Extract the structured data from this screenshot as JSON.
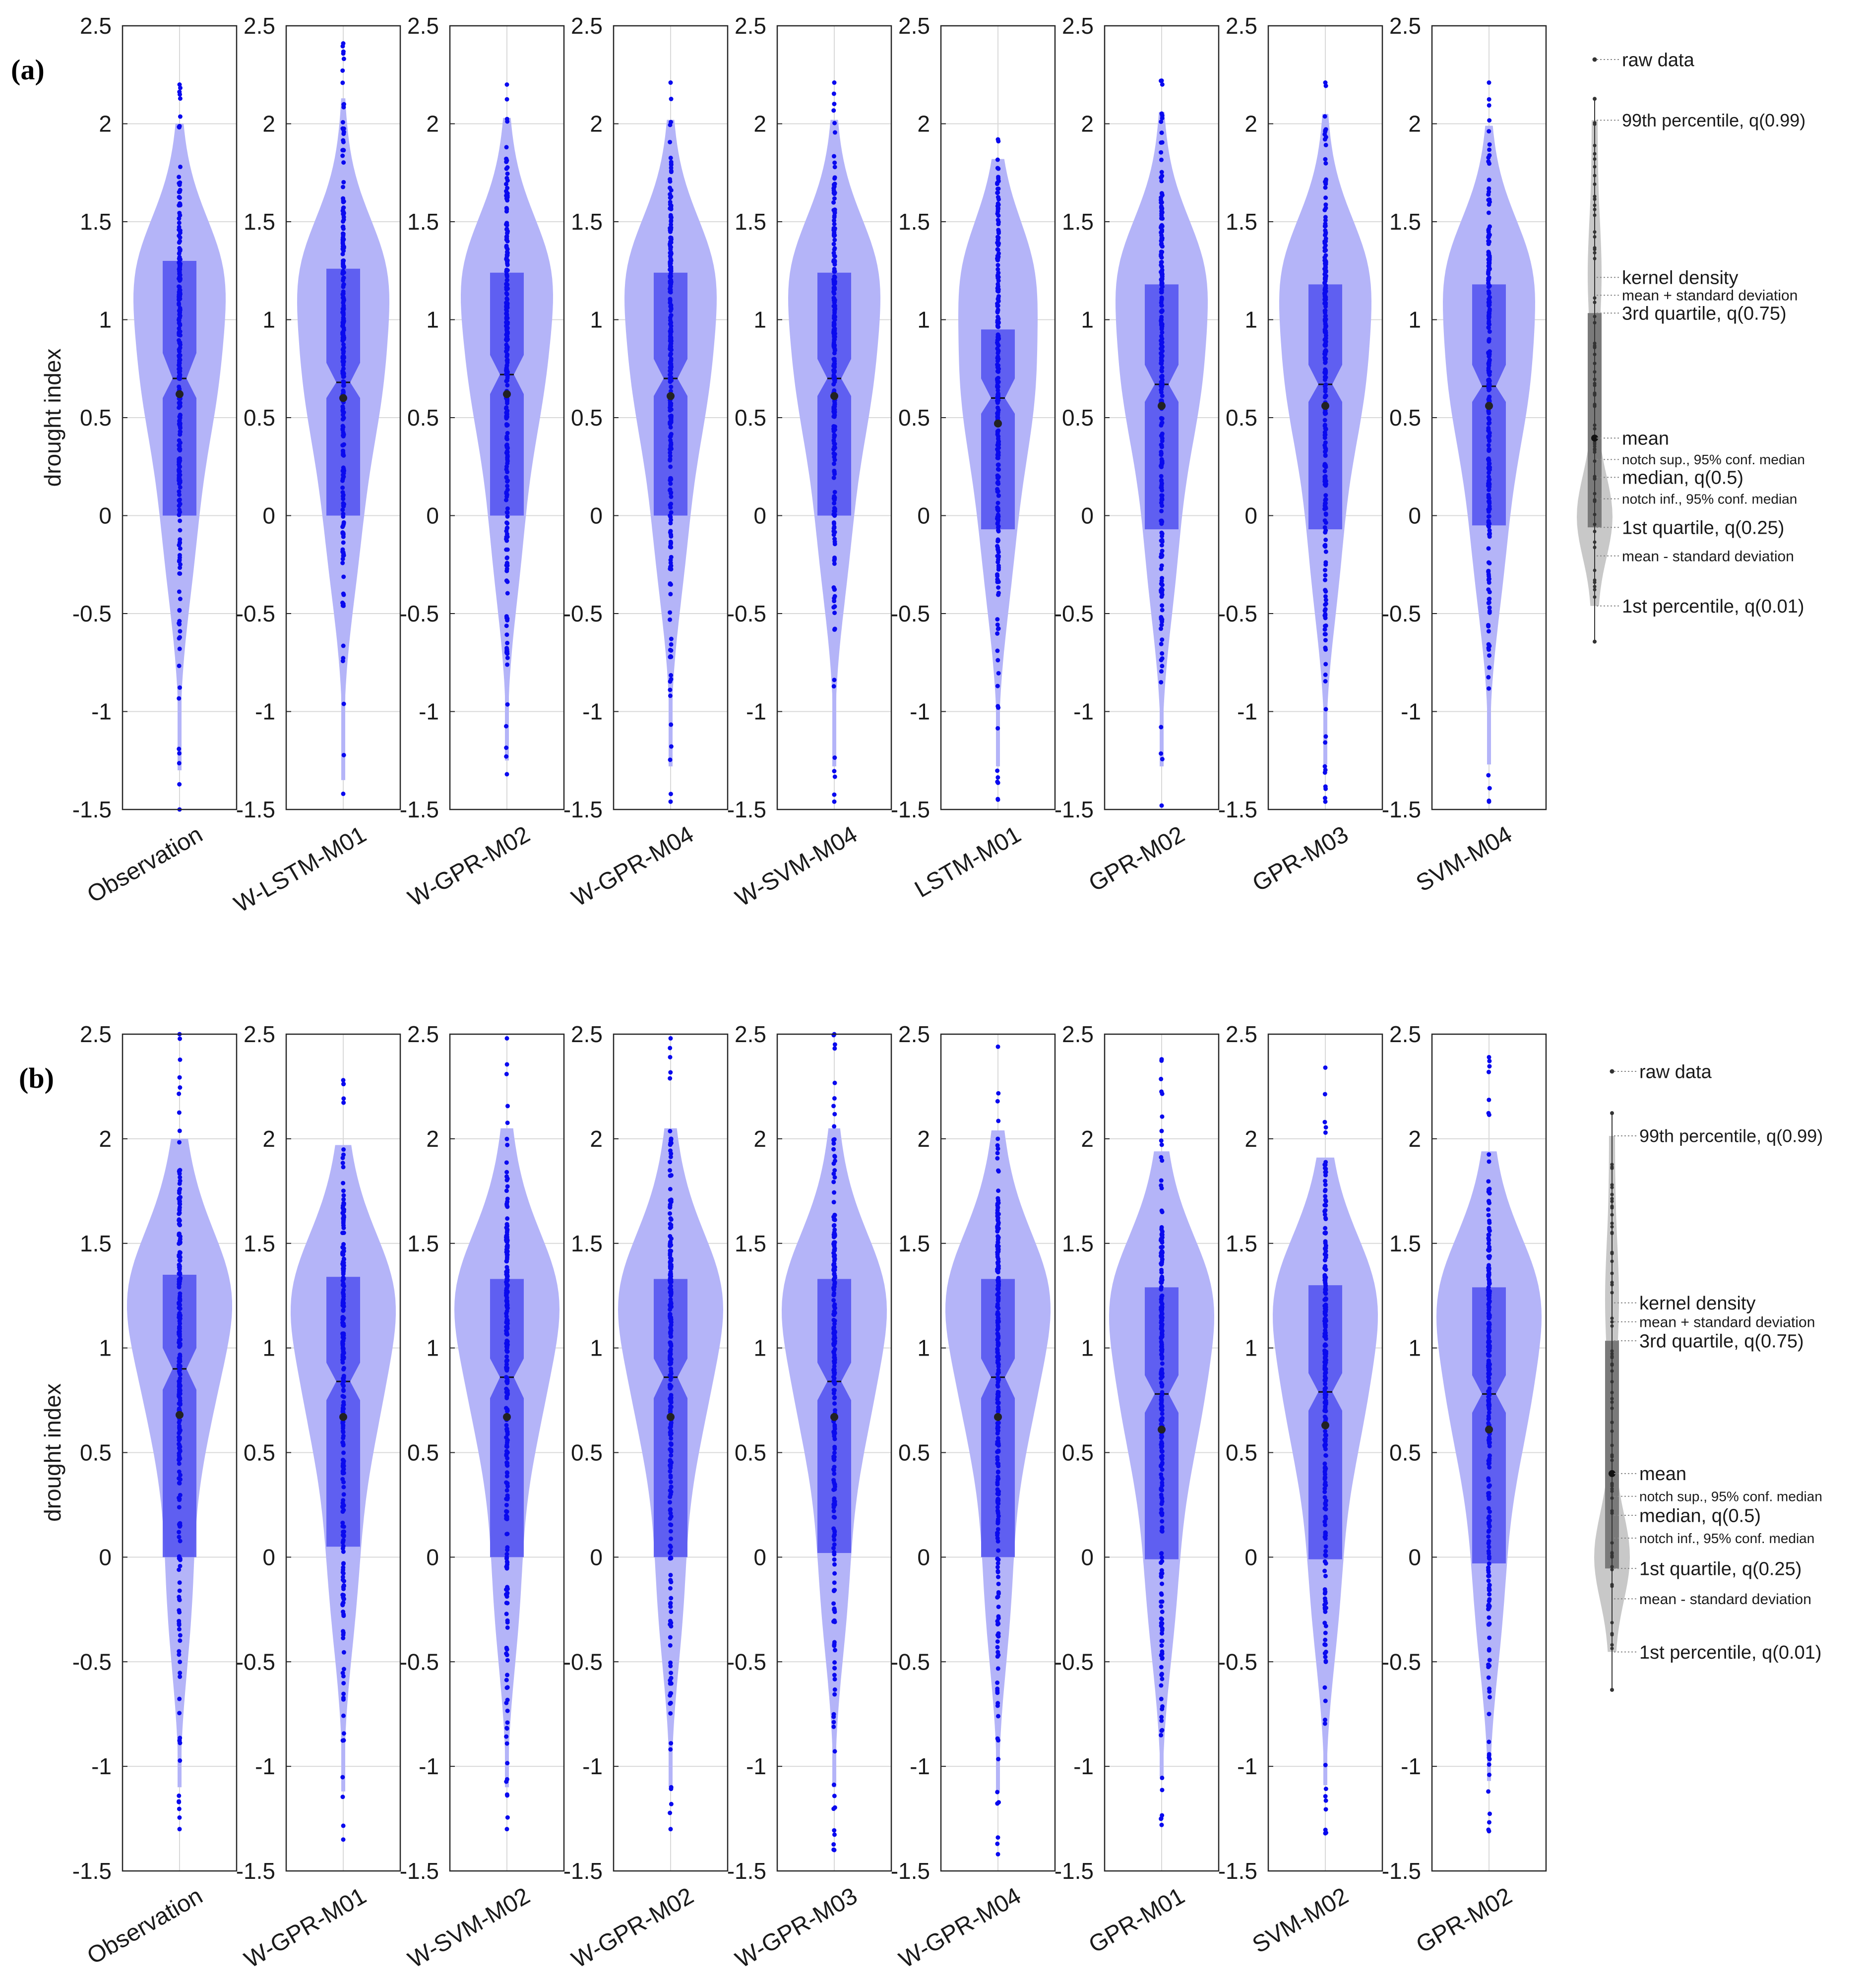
{
  "colors": {
    "violin": "#b4b4f8",
    "box": "#5555f0",
    "notch": "#3a3aee",
    "points": "#0a0aee",
    "mean": "#222222",
    "legend_violin": "#c8c8c8",
    "legend_box": "#7a7a7a",
    "grid": "#d9d9d9"
  },
  "chart_data": [
    {
      "type": "violin",
      "panel_label": "(a)",
      "ylabel": "drought index",
      "ylim": [
        -1.5,
        2.5
      ],
      "yticks": [
        "-1.5",
        "-1",
        "-0.5",
        "0",
        "0.5",
        "1",
        "1.5",
        "2",
        "2.5"
      ],
      "grid": true,
      "series": [
        {
          "name": "Observation",
          "min": -1.5,
          "max": 2.2,
          "q1": 0.0,
          "median": 0.7,
          "q3": 1.3,
          "mean": 0.62,
          "notch_low": 0.6,
          "notch_high": 0.83,
          "q01": -1.3,
          "q99": 2.0,
          "density_peak": 1.0
        },
        {
          "name": "W-LSTM-M01",
          "min": -1.42,
          "max": 2.41,
          "q1": 0.0,
          "median": 0.68,
          "q3": 1.26,
          "mean": 0.6,
          "notch_low": 0.6,
          "notch_high": 0.78,
          "q01": -1.35,
          "q99": 2.13,
          "density_peak": 1.0
        },
        {
          "name": "W-GPR-M02",
          "min": -1.32,
          "max": 2.2,
          "q1": 0.0,
          "median": 0.72,
          "q3": 1.24,
          "mean": 0.62,
          "notch_low": 0.62,
          "notch_high": 0.82,
          "q01": -1.25,
          "q99": 2.03,
          "density_peak": 1.0
        },
        {
          "name": "W-GPR-M04",
          "min": -1.46,
          "max": 2.21,
          "q1": 0.0,
          "median": 0.7,
          "q3": 1.24,
          "mean": 0.61,
          "notch_low": 0.61,
          "notch_high": 0.8,
          "q01": -1.28,
          "q99": 2.02,
          "density_peak": 1.0
        },
        {
          "name": "W-SVM-M04",
          "min": -1.46,
          "max": 2.21,
          "q1": 0.0,
          "median": 0.7,
          "q3": 1.24,
          "mean": 0.61,
          "notch_low": 0.61,
          "notch_high": 0.8,
          "q01": -1.28,
          "q99": 2.02,
          "density_peak": 1.0
        },
        {
          "name": "LSTM-M01",
          "min": -1.45,
          "max": 1.92,
          "q1": -0.07,
          "median": 0.6,
          "q3": 0.95,
          "mean": 0.47,
          "notch_low": 0.52,
          "notch_high": 0.7,
          "q01": -1.28,
          "q99": 1.82,
          "density_peak": 0.8
        },
        {
          "name": "GPR-M02",
          "min": -1.48,
          "max": 2.22,
          "q1": -0.07,
          "median": 0.67,
          "q3": 1.18,
          "mean": 0.56,
          "notch_low": 0.58,
          "notch_high": 0.77,
          "q01": -1.28,
          "q99": 2.06,
          "density_peak": 1.0
        },
        {
          "name": "GPR-M03",
          "min": -1.46,
          "max": 2.21,
          "q1": -0.07,
          "median": 0.67,
          "q3": 1.18,
          "mean": 0.56,
          "notch_low": 0.58,
          "notch_high": 0.77,
          "q01": -1.27,
          "q99": 2.05,
          "density_peak": 1.0
        },
        {
          "name": "SVM-M04",
          "min": -1.46,
          "max": 2.21,
          "q1": -0.05,
          "median": 0.66,
          "q3": 1.18,
          "mean": 0.56,
          "notch_low": 0.58,
          "notch_high": 0.77,
          "q01": -1.27,
          "q99": 1.99,
          "density_peak": 1.0
        }
      ],
      "legend": {
        "items": [
          "raw data",
          "99th percentile, q(0.99)",
          "kernel density",
          "mean + standard deviation",
          "3rd quartile, q(0.75)",
          "mean",
          "notch sup., 95% conf. median",
          "median, q(0.5)",
          "notch inf., 95% conf. median",
          "1st quartile, q(0.25)",
          "mean - standard deviation",
          "1st percentile, q(0.01)"
        ]
      }
    },
    {
      "type": "violin",
      "panel_label": "(b)",
      "ylabel": "drought index",
      "ylim": [
        -1.5,
        2.5
      ],
      "yticks": [
        "-1.5",
        "-1",
        "-0.5",
        "0",
        "0.5",
        "1",
        "1.5",
        "2",
        "2.5"
      ],
      "grid": true,
      "series": [
        {
          "name": "Observation",
          "min": -1.3,
          "max": 2.5,
          "q1": 0.0,
          "median": 0.9,
          "q3": 1.35,
          "mean": 0.68,
          "notch_low": 0.8,
          "notch_high": 1.0,
          "q01": -1.1,
          "q99": 2.0,
          "density_peak": 1.2
        },
        {
          "name": "W-GPR-M01",
          "min": -1.35,
          "max": 2.28,
          "q1": 0.05,
          "median": 0.84,
          "q3": 1.34,
          "mean": 0.67,
          "notch_low": 0.75,
          "notch_high": 0.93,
          "q01": -1.12,
          "q99": 1.97,
          "density_peak": 1.2
        },
        {
          "name": "W-SVM-M02",
          "min": -1.3,
          "max": 2.48,
          "q1": 0.0,
          "median": 0.86,
          "q3": 1.33,
          "mean": 0.67,
          "notch_low": 0.76,
          "notch_high": 0.95,
          "q01": -1.1,
          "q99": 2.05,
          "density_peak": 1.2
        },
        {
          "name": "W-GPR-M02",
          "min": -1.3,
          "max": 2.48,
          "q1": 0.0,
          "median": 0.86,
          "q3": 1.33,
          "mean": 0.67,
          "notch_low": 0.76,
          "notch_high": 0.95,
          "q01": -1.1,
          "q99": 2.05,
          "density_peak": 1.2
        },
        {
          "name": "W-GPR-M03",
          "min": -1.4,
          "max": 2.5,
          "q1": 0.02,
          "median": 0.84,
          "q3": 1.33,
          "mean": 0.67,
          "notch_low": 0.75,
          "notch_high": 0.93,
          "q01": -1.1,
          "q99": 2.05,
          "density_peak": 1.2
        },
        {
          "name": "W-GPR-M04",
          "min": -1.42,
          "max": 2.44,
          "q1": 0.0,
          "median": 0.86,
          "q3": 1.33,
          "mean": 0.67,
          "notch_low": 0.76,
          "notch_high": 0.95,
          "q01": -1.12,
          "q99": 2.04,
          "density_peak": 1.2
        },
        {
          "name": "GPR-M01",
          "min": -1.28,
          "max": 2.38,
          "q1": -0.01,
          "median": 0.78,
          "q3": 1.29,
          "mean": 0.61,
          "notch_low": 0.69,
          "notch_high": 0.87,
          "q01": -1.05,
          "q99": 1.94,
          "density_peak": 1.2
        },
        {
          "name": "SVM-M02",
          "min": -1.32,
          "max": 2.34,
          "q1": -0.01,
          "median": 0.79,
          "q3": 1.3,
          "mean": 0.63,
          "notch_low": 0.7,
          "notch_high": 0.88,
          "q01": -1.09,
          "q99": 1.91,
          "density_peak": 1.2
        },
        {
          "name": "GPR-M02",
          "min": -1.31,
          "max": 2.39,
          "q1": -0.03,
          "median": 0.78,
          "q3": 1.29,
          "mean": 0.61,
          "notch_low": 0.69,
          "notch_high": 0.87,
          "q01": -1.07,
          "q99": 1.94,
          "density_peak": 1.2
        }
      ],
      "legend": {
        "items": [
          "raw data",
          "99th percentile, q(0.99)",
          "kernel density",
          "mean + standard deviation",
          "3rd quartile, q(0.75)",
          "mean",
          "notch sup., 95% conf. median",
          "median, q(0.5)",
          "notch inf., 95% conf. median",
          "1st quartile, q(0.25)",
          "mean - standard deviation",
          "1st percentile, q(0.01)"
        ]
      }
    }
  ]
}
